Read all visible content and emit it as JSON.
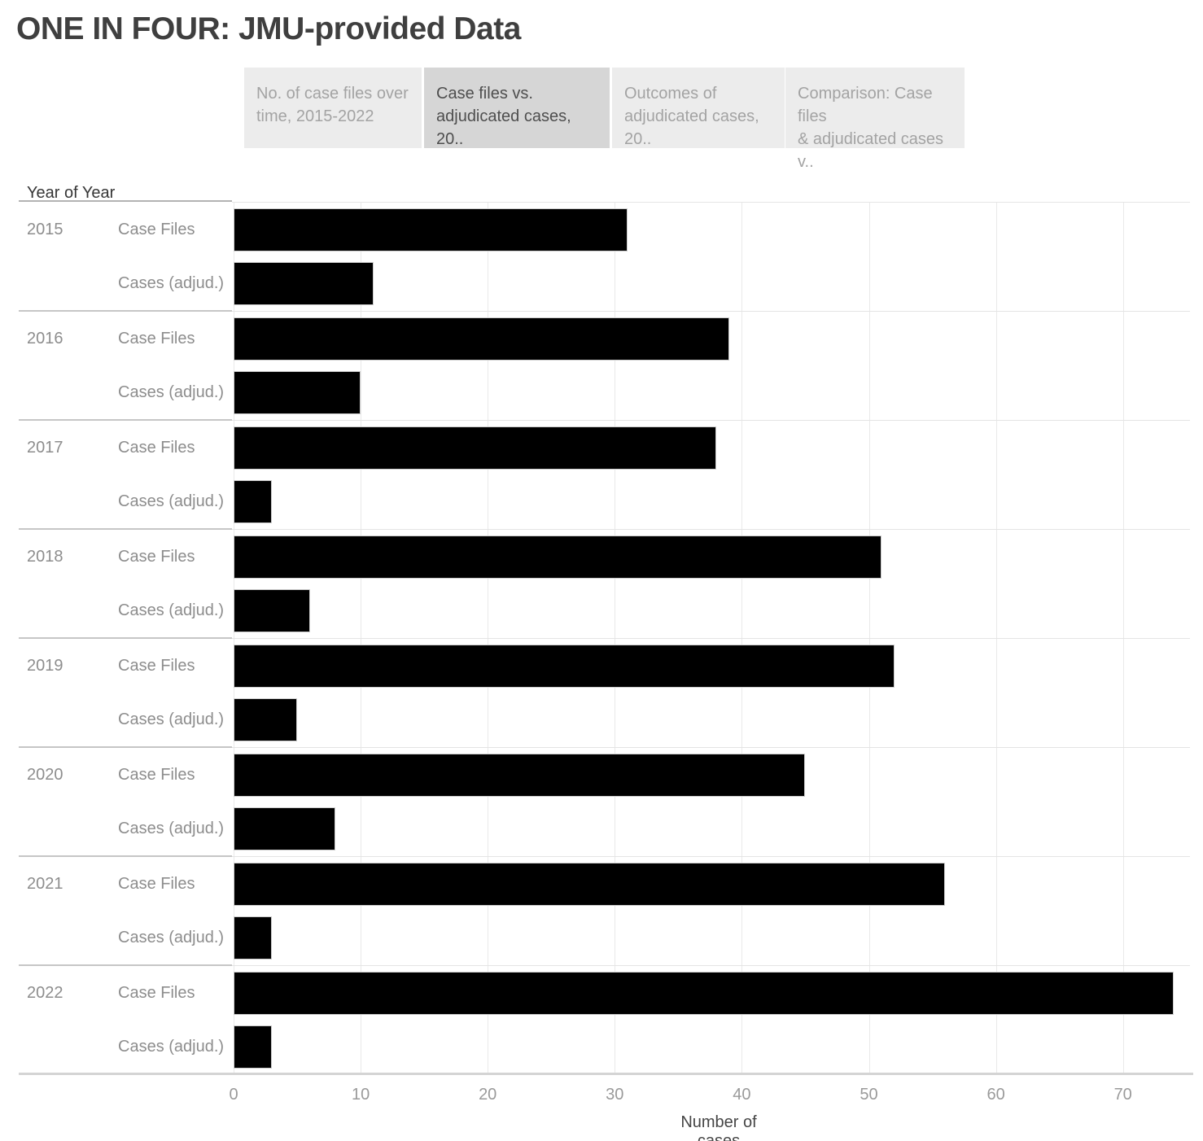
{
  "title": "ONE IN FOUR: JMU-provided Data",
  "tabs": [
    {
      "label": "No. of case files over time, 2015-2022",
      "lines": [
        "No. of case files over",
        "time, 2015-2022"
      ],
      "active": false
    },
    {
      "label": "Case files vs. adjudicated cases, 20..",
      "lines": [
        "Case files vs.",
        "adjudicated cases, 20.."
      ],
      "active": true
    },
    {
      "label": "Outcomes of adjudicated cases, 20..",
      "lines": [
        "Outcomes of",
        "adjudicated cases, 20.."
      ],
      "active": false
    },
    {
      "label": "Comparison: Case files & adjudicated cases v..",
      "lines": [
        "Comparison: Case files",
        "& adjudicated cases v.."
      ],
      "active": false
    }
  ],
  "chart_data": {
    "type": "bar",
    "orientation": "horizontal",
    "row_header": "Year of Year",
    "categories": [
      "2015",
      "2016",
      "2017",
      "2018",
      "2019",
      "2020",
      "2021",
      "2022"
    ],
    "series": [
      {
        "name": "Case Files",
        "values": [
          31,
          39,
          38,
          51,
          52,
          45,
          56,
          74
        ]
      },
      {
        "name": "Cases (adjud.)",
        "values": [
          11,
          10,
          3,
          6,
          5,
          8,
          3,
          3
        ]
      }
    ],
    "xlabel": "Number of cases",
    "x_ticks": [
      0,
      10,
      20,
      30,
      40,
      50,
      60,
      70
    ],
    "xlim": [
      0,
      75
    ],
    "grid": true,
    "legend": "none"
  },
  "colors": {
    "bar": "#000000",
    "tab_active_bg": "#d6d6d6",
    "tab_inactive_bg": "#ececec"
  }
}
